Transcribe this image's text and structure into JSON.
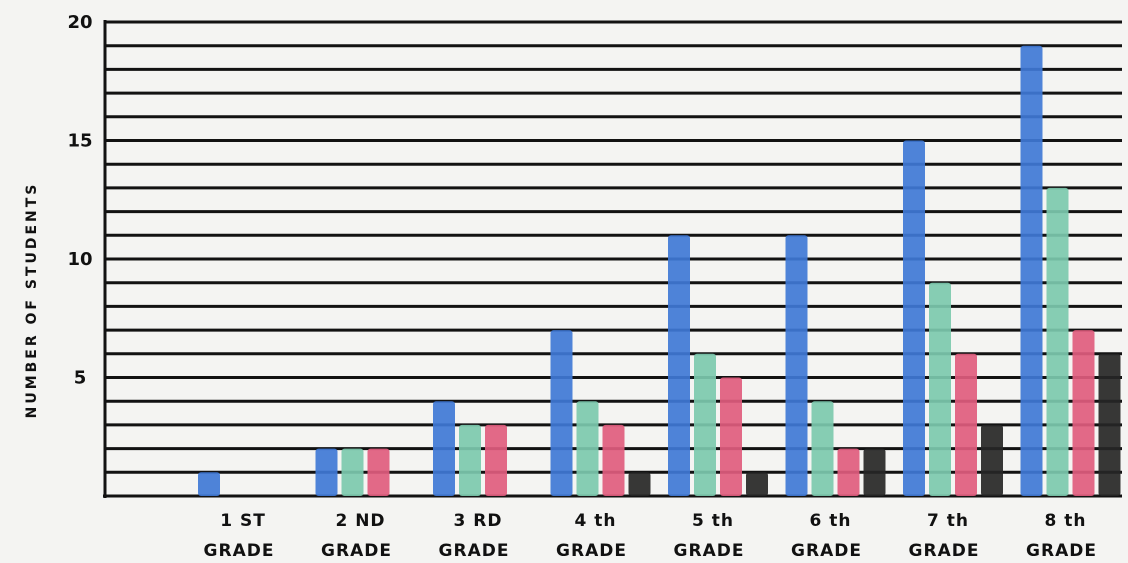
{
  "chart_data": {
    "type": "bar",
    "title": "",
    "xlabel": "",
    "ylabel": "NUMBER OF STUDENTS",
    "ylim": [
      0,
      20
    ],
    "yticks": [
      "5",
      "10",
      "15",
      "20"
    ],
    "grid": true,
    "categories": [
      {
        "top": "1 ST",
        "bottom": "GRADE"
      },
      {
        "top": "2 ND",
        "bottom": "GRADE"
      },
      {
        "top": "3 RD",
        "bottom": "GRADE"
      },
      {
        "top": "4 th",
        "bottom": "GRADE"
      },
      {
        "top": "5 th",
        "bottom": "GRADE"
      },
      {
        "top": "6 th",
        "bottom": "GRADE"
      },
      {
        "top": "7 th",
        "bottom": "GRADE"
      },
      {
        "top": "8 th",
        "bottom": "GRADE"
      }
    ],
    "series": [
      {
        "color": "#3f78d6",
        "values": [
          1,
          2,
          4,
          7,
          11,
          11,
          15,
          19
        ]
      },
      {
        "color": "#7cc9ae",
        "values": [
          0,
          2,
          3,
          4,
          6,
          4,
          9,
          13
        ]
      },
      {
        "color": "#e05c7e",
        "values": [
          0,
          2,
          3,
          3,
          5,
          2,
          6,
          7
        ]
      },
      {
        "color": "#262626",
        "values": [
          0,
          0,
          0,
          1,
          1,
          2,
          3,
          6
        ]
      }
    ]
  }
}
